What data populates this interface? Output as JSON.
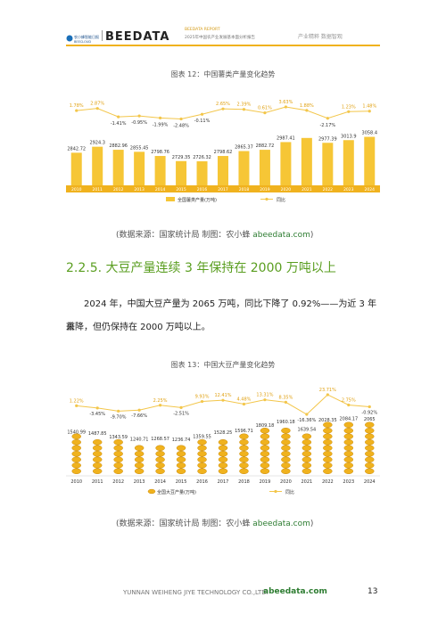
{
  "header": {
    "logo_text": "农小蜂智能日报",
    "logo_sub": "BEECLOUD",
    "brand": "BEEDATA",
    "report_title": "BEEDATA REPORT",
    "report_subtitle": "2025年中国农产业发展基本面分析报告",
    "tagline": "产业精粹  数据智观"
  },
  "figure12": {
    "title": "图表 12：中国薯类产量变化趋势",
    "source_prefix": "(数据来源：国家统计局    制图：农小蜂 ",
    "source_link": "abeedata.com",
    "source_suffix": ")"
  },
  "section": {
    "heading": "2.2.5. 大豆产量连续 3 年保持在 2000 万吨以上",
    "paragraph_line1": "2024 年，中国大豆产量为 2065 万吨，同比下降了 0.92%——为近 3 年来",
    "paragraph_line2": "首降，但仍保持在 2000 万吨以上。"
  },
  "figure13": {
    "title": "图表 13：中国大豆产量变化趋势",
    "source_prefix": "(数据来源：国家统计局    制图：农小蜂 ",
    "source_link": "abeedata.com",
    "source_suffix": ")"
  },
  "footer": {
    "company": "YUNNAN WEIHENG JIYE TECHNOLOGY CO.,LTD.",
    "site": "abeedata.com",
    "page": "13"
  },
  "chart_data": [
    {
      "type": "bar",
      "categories": [
        "2010",
        "2011",
        "2012",
        "2013",
        "2014",
        "2015",
        "2016",
        "2017",
        "2018",
        "2019",
        "2020",
        "2021",
        "2022",
        "2023",
        "2024"
      ],
      "series": [
        {
          "name": "全国薯类产量(万吨)",
          "kind": "bar",
          "values": [
            2842.72,
            2924.3,
            2882.96,
            2855.45,
            2798.76,
            2729.35,
            2726.32,
            2798.62,
            2865.37,
            2882.72,
            2987.41,
            3043.4,
            2977.39,
            3013.9,
            3058.4
          ]
        },
        {
          "name": "同比",
          "kind": "line",
          "unit": "%",
          "values": [
            1.78,
            2.87,
            -1.41,
            -0.95,
            -1.99,
            -2.48,
            -0.11,
            2.65,
            2.39,
            0.61,
            3.63,
            1.88,
            -2.17,
            1.23,
            1.48
          ],
          "labels": [
            "1.78%",
            "2.87%",
            "-1.41%",
            "-0.95%",
            "-1.99%",
            "-2.48%",
            "-0.11%",
            "2.65%",
            "2.39%",
            "0.61%",
            "3.63%",
            "1.88%",
            "-2.17%",
            "1.23%",
            "1.48%"
          ]
        }
      ],
      "bar_labels": [
        "2842.72",
        "2924.3",
        "2882.96",
        "2855.45",
        "2798.76",
        "2729.35",
        "2726.32",
        "2798.62",
        "2865.37",
        "2882.72",
        "2987.41",
        "",
        "2977.39",
        "3013.9",
        "3058.4"
      ],
      "colors": {
        "bar": "#f6c636",
        "line": "#f3c64a",
        "axis_band": "#f0b21e"
      }
    },
    {
      "type": "bar",
      "categories": [
        "2010",
        "2011",
        "2012",
        "2013",
        "2014",
        "2015",
        "2016",
        "2017",
        "2018",
        "2019",
        "2020",
        "2021",
        "2022",
        "2023",
        "2024"
      ],
      "series": [
        {
          "name": "全国大豆产量(万吨)",
          "kind": "bar",
          "values": [
            1540.99,
            1487.85,
            1343.59,
            1240.71,
            1268.57,
            1236.74,
            1359.55,
            1528.25,
            1596.71,
            1809.18,
            1960.18,
            1639.54,
            2028.35,
            2084.17,
            2065
          ]
        },
        {
          "name": "同比",
          "kind": "line",
          "unit": "%",
          "values": [
            1.22,
            -3.45,
            -9.7,
            -7.66,
            2.25,
            -2.51,
            9.93,
            12.41,
            4.48,
            13.31,
            8.35,
            -16.36,
            23.71,
            2.75,
            -0.92
          ],
          "labels": [
            "1.22%",
            "-3.45%",
            "-9.70%",
            "-7.66%",
            "2.25%",
            "-2.51%",
            "9.93%",
            "12.41%",
            "4.48%",
            "13.31%",
            "8.35%",
            "-16.36%",
            "23.71%",
            "2.75%",
            "-0.92%"
          ]
        }
      ],
      "colors": {
        "bar": "#f0b21e",
        "line": "#f3c64a",
        "label_highlight": "#e0a010"
      }
    }
  ]
}
